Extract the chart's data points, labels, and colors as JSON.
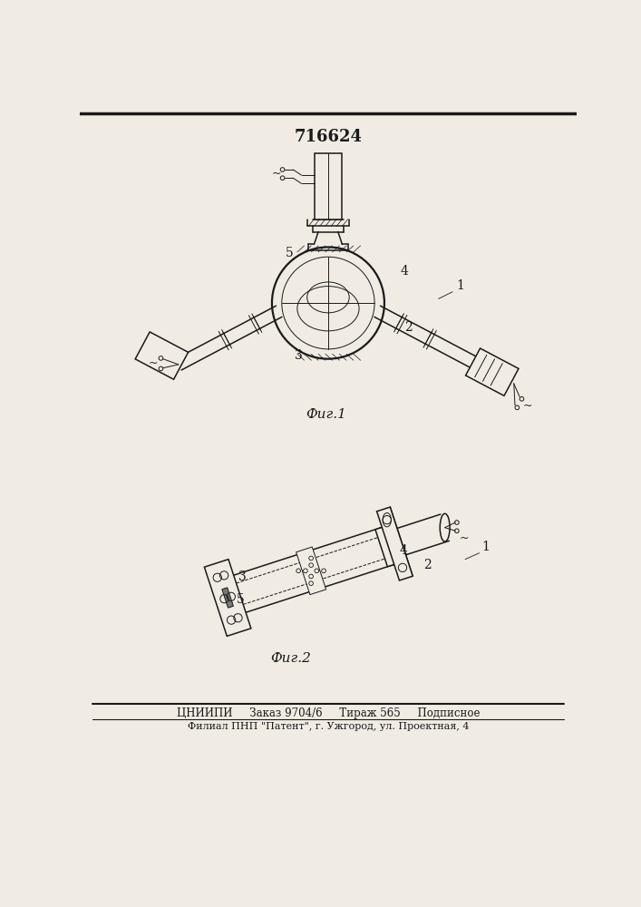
{
  "patent_number": "716624",
  "fig1_label": "Фиг.1",
  "fig2_label": "Фиг.2",
  "footer_line1": "ЦНИИПИ     Заказ 9704/6     Тираж 565     Подписное",
  "footer_line2": "Филиал ПНП \"Патент\", г. Ужгород, ул. Проектная, 4",
  "bg_color": "#f0ece4",
  "line_color": "#1a1a1a",
  "label1": "1",
  "label2": "2",
  "label3": "3",
  "label4": "4",
  "label5": "5"
}
